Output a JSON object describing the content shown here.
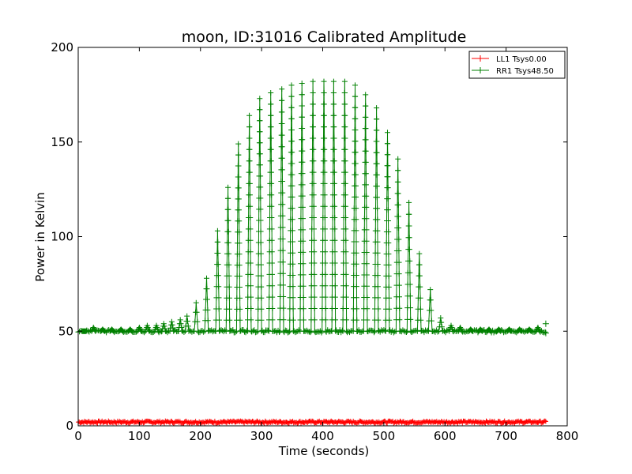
{
  "chart_data": {
    "type": "line",
    "title": "moon, ID:31016 Calibrated Amplitude",
    "xlabel": "Time (seconds)",
    "ylabel": "Power in Kelvin",
    "xlim": [
      0,
      800
    ],
    "ylim": [
      0,
      200
    ],
    "xticks": [
      0,
      100,
      200,
      300,
      400,
      500,
      600,
      700,
      800
    ],
    "yticks": [
      0,
      50,
      100,
      150,
      200
    ],
    "xtick_labels": [
      "0",
      "100",
      "200",
      "300",
      "400",
      "500",
      "600",
      "700",
      "800"
    ],
    "ytick_labels": [
      "0",
      "50",
      "100",
      "150",
      "200"
    ],
    "grid": false,
    "legend_position": "top-right",
    "marker": "+",
    "series": [
      {
        "name": "LL1 Tsys0.00",
        "color": "#ff0000",
        "x_range": [
          0,
          765
        ],
        "baseline": 2,
        "noise": 1.2,
        "peaks": []
      },
      {
        "name": "RR1 Tsys48.50",
        "color": "#008000",
        "x_range": [
          0,
          765
        ],
        "baseline": 50,
        "noise": 1.5,
        "peaks": [
          [
            10,
            50
          ],
          [
            25,
            52
          ],
          [
            40,
            51
          ],
          [
            55,
            51
          ],
          [
            70,
            51
          ],
          [
            85,
            51
          ],
          [
            100,
            52
          ],
          [
            113,
            53
          ],
          [
            128,
            53
          ],
          [
            140,
            54
          ],
          [
            153,
            55
          ],
          [
            167,
            56
          ],
          [
            178,
            58
          ],
          [
            193,
            65
          ],
          [
            210,
            78
          ],
          [
            228,
            103
          ],
          [
            245,
            126
          ],
          [
            262,
            149
          ],
          [
            280,
            164
          ],
          [
            297,
            173
          ],
          [
            315,
            176
          ],
          [
            333,
            178
          ],
          [
            349,
            180
          ],
          [
            366,
            181
          ],
          [
            384,
            182
          ],
          [
            402,
            182
          ],
          [
            418,
            182
          ],
          [
            436,
            182
          ],
          [
            453,
            180
          ],
          [
            470,
            175
          ],
          [
            488,
            168
          ],
          [
            506,
            155
          ],
          [
            523,
            141
          ],
          [
            541,
            118
          ],
          [
            558,
            91
          ],
          [
            576,
            72
          ],
          [
            593,
            57
          ],
          [
            610,
            53
          ],
          [
            625,
            52
          ],
          [
            642,
            51
          ],
          [
            658,
            51
          ],
          [
            672,
            51
          ],
          [
            688,
            51
          ],
          [
            705,
            51
          ],
          [
            722,
            51
          ],
          [
            738,
            51
          ],
          [
            752,
            52
          ]
        ],
        "end_markers": [
          [
            765,
            54
          ],
          [
            765,
            49
          ]
        ]
      }
    ]
  }
}
